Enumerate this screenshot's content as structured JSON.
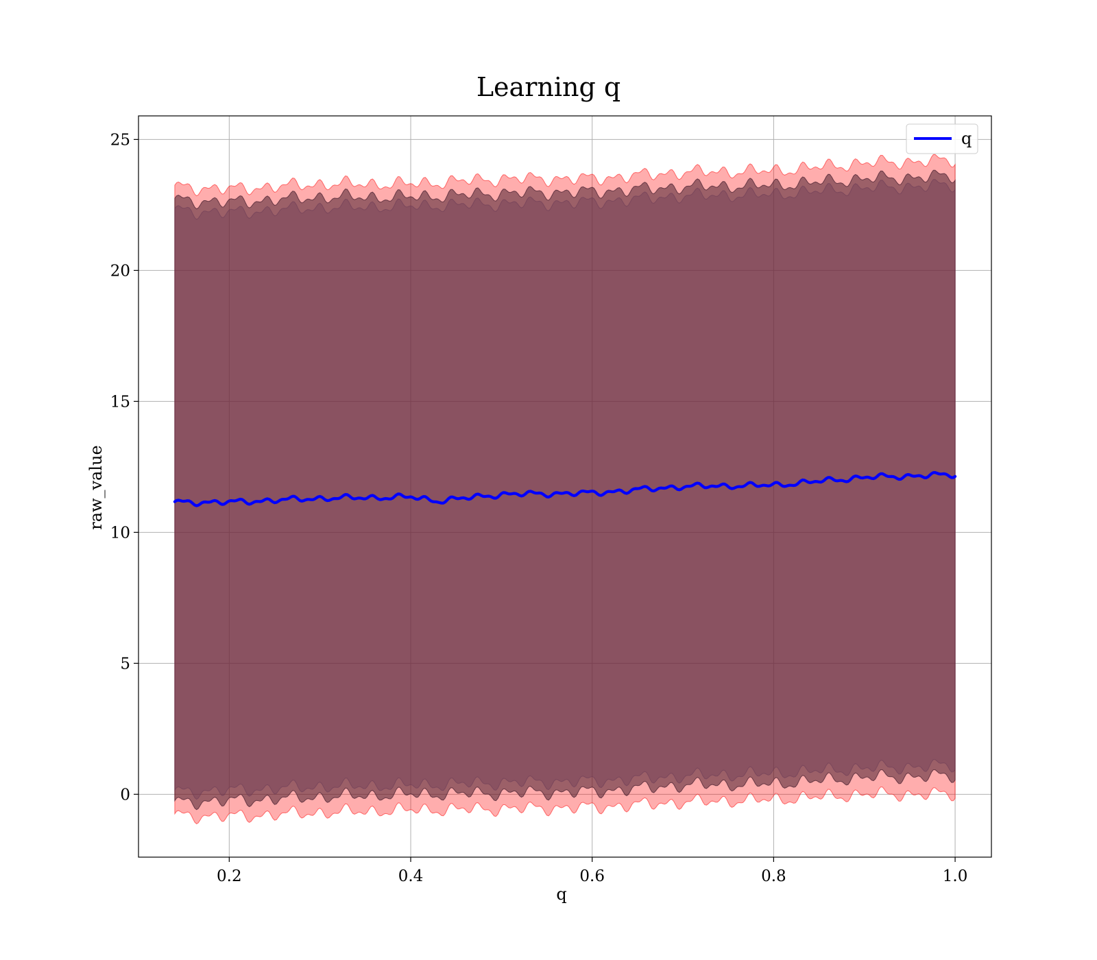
{
  "chart_data": {
    "type": "line",
    "title": "Learning q",
    "xlabel": "q",
    "ylabel": "raw_value",
    "xlim": [
      0.1,
      1.04
    ],
    "ylim": [
      -2.4,
      25.9
    ],
    "x_ticks": [
      0.2,
      0.4,
      0.6,
      0.8,
      1.0
    ],
    "x_tick_labels": [
      "0.2",
      "0.4",
      "0.6",
      "0.8",
      "1.0"
    ],
    "y_ticks": [
      0,
      5,
      10,
      15,
      20,
      25
    ],
    "y_tick_labels": [
      "0",
      "5",
      "10",
      "15",
      "20",
      "25"
    ],
    "grid": true,
    "legend_position": "top-right",
    "series": [
      {
        "name": "q",
        "color": "#0000ff",
        "x": [
          0.14,
          0.2,
          0.3,
          0.4,
          0.43,
          0.5,
          0.6,
          0.7,
          0.8,
          0.9,
          1.0
        ],
        "values": [
          11.15,
          11.15,
          11.3,
          11.35,
          11.2,
          11.45,
          11.5,
          11.75,
          11.8,
          12.1,
          12.2
        ]
      }
    ],
    "bands": [
      {
        "color": "#ff0000",
        "opacity": 0.32,
        "x": [
          0.14,
          0.2,
          0.3,
          0.4,
          0.5,
          0.6,
          0.7,
          0.8,
          0.9,
          1.0
        ],
        "lower": [
          -0.8,
          -0.85,
          -0.7,
          -0.6,
          -0.55,
          -0.5,
          -0.3,
          -0.2,
          0.0,
          0.0
        ],
        "upper": [
          23.2,
          23.1,
          23.3,
          23.3,
          23.5,
          23.5,
          23.75,
          23.8,
          24.1,
          24.2
        ]
      },
      {
        "color": "#4a2030",
        "opacity": 0.55,
        "x": [
          0.14,
          0.2,
          0.3,
          0.4,
          0.5,
          0.6,
          0.7,
          0.8,
          0.9,
          1.0
        ],
        "lower": [
          -0.3,
          -0.25,
          -0.1,
          0.0,
          0.05,
          0.1,
          0.35,
          0.4,
          0.65,
          0.7
        ],
        "upper": [
          22.7,
          22.6,
          22.8,
          22.8,
          22.95,
          23.0,
          23.2,
          23.25,
          23.5,
          23.6
        ]
      },
      {
        "color": "#6a3a55",
        "opacity": 0.35,
        "x": [
          0.14,
          0.2,
          0.3,
          0.4,
          0.5,
          0.6,
          0.7,
          0.8,
          0.9,
          1.0
        ],
        "lower": [
          0.1,
          0.15,
          0.3,
          0.35,
          0.45,
          0.5,
          0.7,
          0.8,
          1.0,
          1.1
        ],
        "upper": [
          22.3,
          22.2,
          22.4,
          22.45,
          22.55,
          22.6,
          22.85,
          22.9,
          23.15,
          23.25
        ]
      }
    ]
  }
}
